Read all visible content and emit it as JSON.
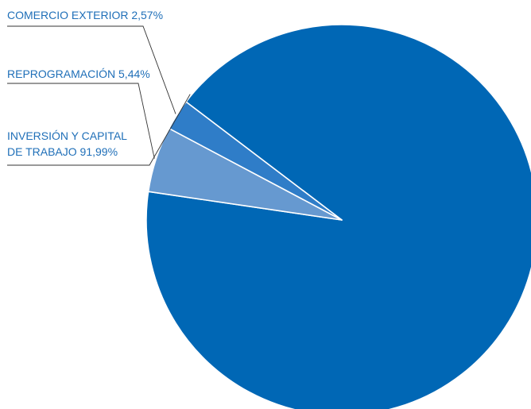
{
  "chart_data": {
    "type": "pie",
    "slices": [
      {
        "name": "INVERSIÓN Y CAPITAL DE TRABAJO",
        "label_lines": [
          "INVERSIÓN Y CAPITAL",
          "DE TRABAJO 91,99%"
        ],
        "value": 91.99,
        "color": "#0067b5"
      },
      {
        "name": "REPROGRAMACIÓN",
        "label_lines": [
          "REPROGRAMACIÓN 5,44%"
        ],
        "value": 5.44,
        "color": "#6699d0"
      },
      {
        "name": "COMERCIO EXTERIOR",
        "label_lines": [
          "COMERCIO EXTERIOR 2,57%"
        ],
        "value": 2.57,
        "color": "#2f7dc8"
      }
    ]
  }
}
